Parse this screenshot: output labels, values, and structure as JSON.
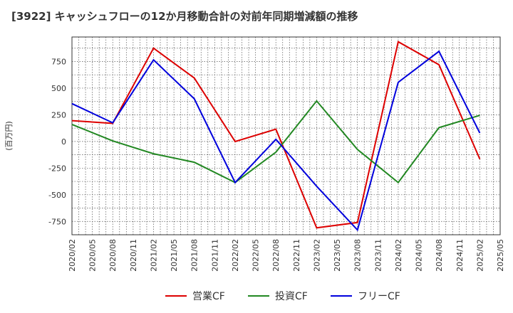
{
  "chart_data": {
    "type": "line",
    "title": "[3922]  キャッシュフローの12か月移動合計の対前年同期増減額の推移",
    "ylabel": "(百万円)",
    "xlabel": "",
    "ylim": [
      -875,
      980
    ],
    "yticks": [
      -750,
      -500,
      -250,
      0,
      250,
      500,
      750
    ],
    "ytick_labels": [
      "-750",
      "-500",
      "-250",
      "0",
      "250",
      "500",
      "750"
    ],
    "x_labels": [
      "2020/02",
      "2020/05",
      "2020/08",
      "2020/11",
      "2021/02",
      "2021/05",
      "2021/08",
      "2021/11",
      "2022/02",
      "2022/05",
      "2022/08",
      "2022/11",
      "2023/02",
      "2023/05",
      "2023/08",
      "2023/11",
      "2024/02",
      "2024/05",
      "2024/08",
      "2024/11",
      "2025/02",
      "2025/05"
    ],
    "data_x": [
      "2020/02",
      "2020/08",
      "2021/02",
      "2021/08",
      "2022/02",
      "2022/08",
      "2023/02",
      "2023/08",
      "2024/02",
      "2024/08",
      "2025/02"
    ],
    "series": [
      {
        "name": "営業CF",
        "color": "#dd0000",
        "values": [
          195,
          170,
          875,
          595,
          0,
          115,
          -810,
          -760,
          935,
          720,
          -165
        ]
      },
      {
        "name": "投資CF",
        "color": "#228822",
        "values": [
          160,
          5,
          -115,
          -195,
          -385,
          -100,
          380,
          -75,
          -385,
          130,
          245
        ]
      },
      {
        "name": "フリーCF",
        "color": "#0000dd",
        "values": [
          355,
          175,
          765,
          400,
          -385,
          20,
          -420,
          -830,
          555,
          845,
          80
        ]
      }
    ],
    "grid": true,
    "legend_position": "bottom-center"
  }
}
